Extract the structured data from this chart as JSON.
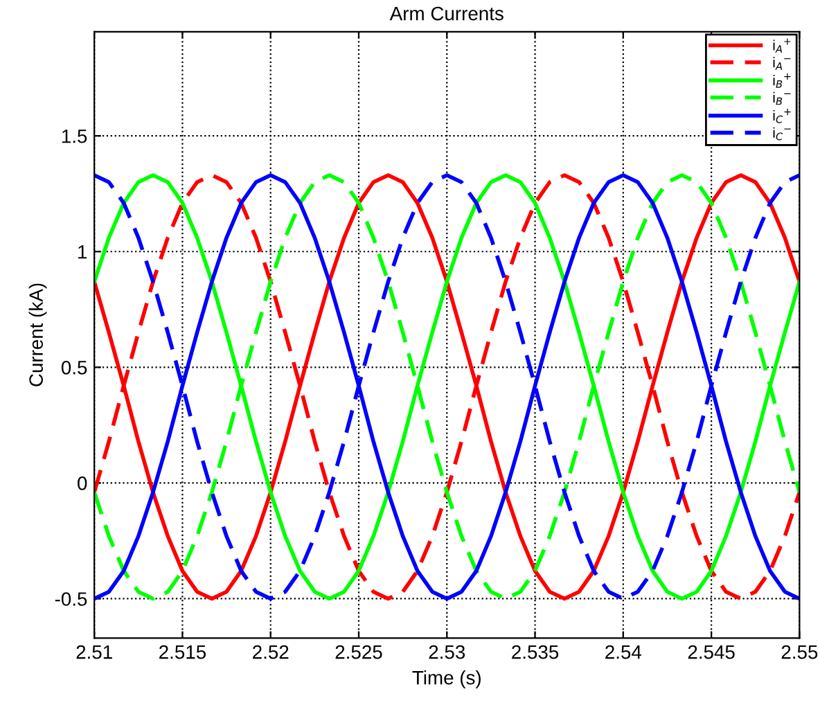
{
  "chart_data": {
    "type": "line",
    "title": "Arm Currents",
    "xlabel": "Time (s)",
    "ylabel": "Current (kA)",
    "x": [
      2.51,
      2.51083,
      2.51167,
      2.5125,
      2.51333,
      2.51417,
      2.515,
      2.51583,
      2.51667,
      2.5175,
      2.51833,
      2.51917,
      2.52,
      2.52083,
      2.52167,
      2.5225,
      2.52333,
      2.52417,
      2.525,
      2.52583,
      2.52667,
      2.5275,
      2.52833,
      2.52917,
      2.53,
      2.53083,
      2.53167,
      2.5325,
      2.53333,
      2.53417,
      2.535,
      2.53583,
      2.53667,
      2.5375,
      2.53833,
      2.53917,
      2.54,
      2.54083,
      2.54167,
      2.5425,
      2.54333,
      2.54417,
      2.545,
      2.54583,
      2.54667,
      2.5475,
      2.54833,
      2.54917,
      2.55
    ],
    "series": [
      {
        "name": "i$_{A}$$^{+}$",
        "color": "#ff0000",
        "line_style": "solid",
        "values": [
          0.87,
          0.65,
          0.42,
          0.18,
          -0.04,
          -0.23,
          -0.38,
          -0.47,
          -0.5,
          -0.47,
          -0.38,
          -0.23,
          -0.04,
          0.18,
          0.42,
          0.65,
          0.87,
          1.06,
          1.21,
          1.3,
          1.33,
          1.3,
          1.21,
          1.06,
          0.87,
          0.65,
          0.42,
          0.18,
          -0.04,
          -0.23,
          -0.38,
          -0.47,
          -0.5,
          -0.47,
          -0.38,
          -0.23,
          -0.04,
          0.18,
          0.42,
          0.65,
          0.87,
          1.06,
          1.21,
          1.3,
          1.33,
          1.3,
          1.21,
          1.06,
          0.87
        ]
      },
      {
        "name": "i$_{A}$$^{−}$",
        "color": "#ff0000",
        "line_style": "dashed",
        "values": [
          -0.04,
          0.18,
          0.42,
          0.65,
          0.87,
          1.06,
          1.21,
          1.3,
          1.33,
          1.3,
          1.21,
          1.06,
          0.87,
          0.65,
          0.42,
          0.18,
          -0.04,
          -0.23,
          -0.38,
          -0.47,
          -0.5,
          -0.47,
          -0.38,
          -0.23,
          -0.04,
          0.18,
          0.42,
          0.65,
          0.87,
          1.06,
          1.21,
          1.3,
          1.33,
          1.3,
          1.21,
          1.06,
          0.87,
          0.65,
          0.42,
          0.18,
          -0.04,
          -0.23,
          -0.38,
          -0.47,
          -0.5,
          -0.47,
          -0.38,
          -0.23,
          -0.04
        ]
      },
      {
        "name": "i$_{B}$$^{+}$",
        "color": "#00ff00",
        "line_style": "solid",
        "values": [
          0.87,
          1.06,
          1.21,
          1.3,
          1.33,
          1.3,
          1.21,
          1.06,
          0.87,
          0.65,
          0.42,
          0.18,
          -0.04,
          -0.23,
          -0.38,
          -0.47,
          -0.5,
          -0.47,
          -0.38,
          -0.23,
          -0.04,
          0.18,
          0.42,
          0.65,
          0.87,
          1.06,
          1.21,
          1.3,
          1.33,
          1.3,
          1.21,
          1.06,
          0.87,
          0.65,
          0.42,
          0.18,
          -0.04,
          -0.23,
          -0.38,
          -0.47,
          -0.5,
          -0.47,
          -0.38,
          -0.23,
          -0.04,
          0.18,
          0.42,
          0.65,
          0.87
        ]
      },
      {
        "name": "i$_{B}$$^{−}$",
        "color": "#00ff00",
        "line_style": "dashed",
        "values": [
          -0.04,
          -0.23,
          -0.38,
          -0.47,
          -0.5,
          -0.47,
          -0.38,
          -0.23,
          -0.04,
          0.18,
          0.42,
          0.65,
          0.87,
          1.06,
          1.21,
          1.3,
          1.33,
          1.3,
          1.21,
          1.06,
          0.87,
          0.65,
          0.42,
          0.18,
          -0.04,
          -0.23,
          -0.38,
          -0.47,
          -0.5,
          -0.47,
          -0.38,
          -0.23,
          -0.04,
          0.18,
          0.42,
          0.65,
          0.87,
          1.06,
          1.21,
          1.3,
          1.33,
          1.3,
          1.21,
          1.06,
          0.87,
          0.65,
          0.42,
          0.18,
          -0.04
        ]
      },
      {
        "name": "i$_{C}$$^{+}$",
        "color": "#0000ff",
        "line_style": "solid",
        "values": [
          -0.5,
          -0.47,
          -0.38,
          -0.23,
          -0.04,
          0.18,
          0.42,
          0.65,
          0.87,
          1.06,
          1.21,
          1.3,
          1.33,
          1.3,
          1.21,
          1.06,
          0.87,
          0.65,
          0.42,
          0.18,
          -0.04,
          -0.23,
          -0.38,
          -0.47,
          -0.5,
          -0.47,
          -0.38,
          -0.23,
          -0.04,
          0.18,
          0.42,
          0.65,
          0.87,
          1.06,
          1.21,
          1.3,
          1.33,
          1.3,
          1.21,
          1.06,
          0.87,
          0.65,
          0.42,
          0.18,
          -0.04,
          -0.23,
          -0.38,
          -0.47,
          -0.5
        ]
      },
      {
        "name": "i$_{C}$$^{−}$",
        "color": "#0000ff",
        "line_style": "dashed",
        "values": [
          1.33,
          1.3,
          1.21,
          1.06,
          0.87,
          0.65,
          0.42,
          0.18,
          -0.04,
          -0.23,
          -0.38,
          -0.47,
          -0.5,
          -0.47,
          -0.38,
          -0.23,
          -0.04,
          0.18,
          0.42,
          0.65,
          0.87,
          1.06,
          1.21,
          1.3,
          1.33,
          1.3,
          1.21,
          1.06,
          0.87,
          0.65,
          0.42,
          0.18,
          -0.04,
          -0.23,
          -0.38,
          -0.47,
          -0.5,
          -0.47,
          -0.38,
          -0.23,
          -0.04,
          0.18,
          0.42,
          0.65,
          0.87,
          1.06,
          1.21,
          1.3,
          1.33
        ]
      }
    ],
    "xlim": [
      2.51,
      2.55
    ],
    "xticks": [
      2.51,
      2.515,
      2.52,
      2.525,
      2.53,
      2.535,
      2.54,
      2.545,
      2.55
    ],
    "ylim": [
      -0.67,
      1.95
    ],
    "yticks": [
      -0.5,
      0,
      0.5,
      1,
      1.5
    ],
    "grid": true,
    "legend": "top right",
    "marker": "none"
  }
}
